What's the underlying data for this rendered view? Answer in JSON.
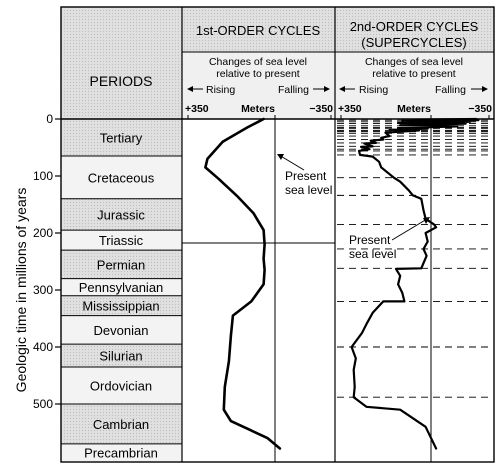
{
  "headers": {
    "periods": "PERIODS",
    "first_order": "1st-ORDER CYCLES",
    "second_order_line1": "2nd-ORDER CYCLES",
    "second_order_line2": "(SUPERCYCLES)",
    "changes_line1": "Changes of sea level",
    "changes_line2": "relative to present",
    "rising": "Rising",
    "falling": "Falling",
    "scale_left": "+350",
    "scale_mid": "Meters",
    "scale_right": "−350"
  },
  "axis": {
    "label": "Geologic time in millions of years",
    "ticks": [
      {
        "value": 0,
        "label": "0"
      },
      {
        "value": 100,
        "label": "100"
      },
      {
        "value": 200,
        "label": "200"
      },
      {
        "value": 300,
        "label": "300"
      },
      {
        "value": 400,
        "label": "400"
      },
      {
        "value": 500,
        "label": "500"
      }
    ]
  },
  "periods": [
    {
      "name": "Tertiary",
      "start_ma": 0,
      "end_ma": 65
    },
    {
      "name": "Cretaceous",
      "start_ma": 65,
      "end_ma": 140
    },
    {
      "name": "Jurassic",
      "start_ma": 140,
      "end_ma": 195
    },
    {
      "name": "Triassic",
      "start_ma": 195,
      "end_ma": 230
    },
    {
      "name": "Permian",
      "start_ma": 230,
      "end_ma": 280
    },
    {
      "name": "Pennsylvanian",
      "start_ma": 280,
      "end_ma": 310
    },
    {
      "name": "Mississippian",
      "start_ma": 310,
      "end_ma": 345
    },
    {
      "name": "Devonian",
      "start_ma": 345,
      "end_ma": 395
    },
    {
      "name": "Silurian",
      "start_ma": 395,
      "end_ma": 435
    },
    {
      "name": "Ordovician",
      "start_ma": 435,
      "end_ma": 500
    },
    {
      "name": "Cambrian",
      "start_ma": 500,
      "end_ma": 570
    },
    {
      "name": "Precambrian",
      "start_ma": 570,
      "end_ma": 600
    }
  ],
  "annotations": {
    "first_present_line1": "Present",
    "first_present_line2": "sea level",
    "second_present_line1": "Present",
    "second_present_line2": "sea level"
  },
  "chart_data": [
    {
      "type": "line",
      "title": "1st-ORDER CYCLES",
      "xlabel": "Meters",
      "ylabel": "Geologic time in millions of years",
      "xlim": [
        350,
        -350
      ],
      "ylim": [
        0,
        600
      ],
      "series": [
        {
          "points": [
            [
              -20,
              0
            ],
            [
              60,
              15
            ],
            [
              180,
              40
            ],
            [
              255,
              70
            ],
            [
              265,
              85
            ],
            [
              200,
              105
            ],
            [
              110,
              135
            ],
            [
              30,
              165
            ],
            [
              -20,
              195
            ],
            [
              -25,
              220
            ],
            [
              -20,
              245
            ],
            [
              -25,
              265
            ],
            [
              -20,
              290
            ],
            [
              40,
              320
            ],
            [
              130,
              345
            ],
            [
              140,
              380
            ],
            [
              150,
              425
            ],
            [
              170,
              470
            ],
            [
              175,
              510
            ],
            [
              140,
              530
            ],
            [
              50,
              545
            ],
            [
              -40,
              560
            ],
            [
              -100,
              578
            ]
          ]
        }
      ]
    },
    {
      "type": "line",
      "title": "2nd-ORDER CYCLES (SUPERCYCLES)",
      "xlabel": "Meters",
      "ylabel": "Geologic time in millions of years",
      "xlim": [
        350,
        -350
      ],
      "ylim": [
        0,
        600
      ],
      "breaks_ma": [
        2,
        5,
        8,
        12,
        15,
        17,
        20,
        22,
        25,
        30,
        36,
        42,
        48,
        53,
        56,
        63,
        103,
        134,
        185,
        228,
        262,
        320,
        400,
        488
      ],
      "series": [
        {
          "points": [
            [
              -290,
              0
            ],
            [
              0,
              1
            ],
            [
              -300,
              2
            ],
            [
              60,
              3
            ],
            [
              -260,
              5
            ],
            [
              80,
              7
            ],
            [
              -240,
              8
            ],
            [
              70,
              11
            ],
            [
              -200,
              13
            ],
            [
              80,
              16
            ],
            [
              -60,
              17
            ],
            [
              120,
              19
            ],
            [
              -20,
              20
            ],
            [
              140,
              24
            ],
            [
              120,
              30
            ],
            [
              160,
              33
            ],
            [
              150,
              36
            ],
            [
              210,
              38
            ],
            [
              185,
              42
            ],
            [
              240,
              43
            ],
            [
              200,
              48
            ],
            [
              255,
              49
            ],
            [
              215,
              53
            ],
            [
              265,
              56
            ],
            [
              260,
              63
            ],
            [
              200,
              66
            ],
            [
              170,
              75
            ],
            [
              160,
              85
            ],
            [
              100,
              103
            ],
            [
              70,
              110
            ],
            [
              30,
              125
            ],
            [
              10,
              134
            ],
            [
              -30,
              140
            ],
            [
              -40,
              160
            ],
            [
              -50,
              175
            ],
            [
              -90,
              185
            ],
            [
              -100,
              190
            ],
            [
              -50,
              200
            ],
            [
              -60,
              215
            ],
            [
              -40,
              228
            ],
            [
              -55,
              240
            ],
            [
              -30,
              262
            ],
            [
              90,
              263
            ],
            [
              70,
              275
            ],
            [
              80,
              290
            ],
            [
              60,
              305
            ],
            [
              50,
              320
            ],
            [
              150,
              320
            ],
            [
              200,
              340
            ],
            [
              230,
              360
            ],
            [
              250,
              375
            ],
            [
              300,
              400
            ],
            [
              280,
              420
            ],
            [
              290,
              440
            ],
            [
              285,
              470
            ],
            [
              290,
              488
            ],
            [
              230,
              505
            ],
            [
              70,
              510
            ],
            [
              -50,
              540
            ],
            [
              -100,
              578
            ]
          ]
        }
      ]
    }
  ]
}
